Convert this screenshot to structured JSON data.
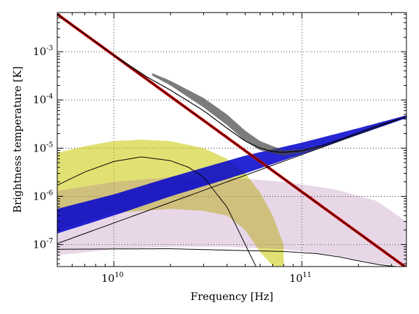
{
  "chart_data": {
    "type": "line",
    "title": "",
    "xlabel": "Frequency [Hz]",
    "ylabel": "Brightness temperature [K]",
    "x_scale": "log",
    "y_scale": "log",
    "xlim": [
      5000000000.0,
      360000000000.0
    ],
    "ylim": [
      3.5e-08,
      0.0065
    ],
    "grid": true,
    "grid_style": "dotted",
    "legend": "none",
    "x_ticks": [
      {
        "value": 10000000000.0,
        "base": "10",
        "exp": "10"
      },
      {
        "value": 100000000000.0,
        "base": "10",
        "exp": "11"
      }
    ],
    "y_ticks": [
      {
        "value": 0.001,
        "base": "10",
        "exp": "-3"
      },
      {
        "value": 0.0001,
        "base": "10",
        "exp": "-4"
      },
      {
        "value": 1e-05,
        "base": "10",
        "exp": "-5"
      },
      {
        "value": 1e-06,
        "base": "10",
        "exp": "-6"
      },
      {
        "value": 1e-07,
        "base": "10",
        "exp": "-7"
      }
    ],
    "bands": [
      {
        "id": "yellow-band",
        "color": "#c8c800",
        "opacity": 0.55,
        "x": [
          5000000000.0,
          7000000000.0,
          10000000000.0,
          14000000000.0,
          20000000000.0,
          30000000000.0,
          40000000000.0,
          50000000000.0,
          60000000000.0,
          70000000000.0,
          80000000000.0
        ],
        "lower": [
          2e-07,
          3e-07,
          4.5e-07,
          5e-07,
          5.5e-07,
          5e-07,
          4e-07,
          2e-07,
          7e-08,
          3.6e-08,
          3.6e-08
        ],
        "upper": [
          8e-06,
          1.1e-05,
          1.4e-05,
          1.5e-05,
          1.4e-05,
          1e-05,
          6e-06,
          3e-06,
          1.2e-06,
          4e-07,
          1e-07
        ]
      },
      {
        "id": "purple-band",
        "color": "#a060a0",
        "opacity": 0.25,
        "x": [
          5000000000.0,
          10000000000.0,
          20000000000.0,
          40000000000.0,
          80000000000.0,
          150000000000.0,
          250000000000.0,
          360000000000.0
        ],
        "lower": [
          6e-08,
          8e-08,
          9e-08,
          9e-08,
          8e-08,
          6e-08,
          4e-08,
          3.6e-08
        ],
        "upper": [
          1.3e-06,
          2e-06,
          2.5e-06,
          2.5e-06,
          2e-06,
          1.4e-06,
          8e-07,
          3e-07
        ]
      },
      {
        "id": "blue-band",
        "color": "#0000cc",
        "opacity": 0.85,
        "x": [
          5000000000.0,
          10000000000.0,
          20000000000.0,
          50000000000.0,
          100000000000.0,
          200000000000.0,
          360000000000.0
        ],
        "lower": [
          1.7e-07,
          4e-07,
          1e-06,
          3e-06,
          7.5e-06,
          1.9e-05,
          4.2e-05
        ],
        "upper": [
          5.5e-07,
          1.1e-06,
          2.5e-06,
          7e-06,
          1.3e-05,
          2.6e-05,
          4.8e-05
        ]
      },
      {
        "id": "gray-band",
        "color": "#444444",
        "opacity": 0.7,
        "x": [
          16000000000.0,
          20000000000.0,
          30000000000.0,
          40000000000.0,
          50000000000.0,
          60000000000.0,
          80000000000.0,
          100000000000.0,
          130000000000.0
        ],
        "lower": [
          0.00032,
          0.0002,
          7e-05,
          3e-05,
          1.4e-05,
          9e-06,
          7e-06,
          8e-06,
          1.05e-05
        ],
        "upper": [
          0.00036,
          0.00025,
          0.00011,
          5e-05,
          2.3e-05,
          1.4e-05,
          9e-06,
          9.5e-06,
          1.15e-05
        ]
      }
    ],
    "series": [
      {
        "id": "red-power-law",
        "color": "#cc0000",
        "width": 4,
        "x": [
          5000000000.0,
          360000000000.0
        ],
        "y": [
          0.006,
          3.3e-08
        ]
      },
      {
        "id": "black-total",
        "color": "#000000",
        "width": 1.2,
        "x": [
          5000000000.0,
          10000000000.0,
          15000000000.0,
          20000000000.0,
          30000000000.0,
          40000000000.0,
          50000000000.0,
          60000000000.0,
          70000000000.0,
          80000000000.0,
          100000000000.0,
          130000000000.0,
          170000000000.0,
          250000000000.0,
          360000000000.0
        ],
        "y": [
          0.006,
          0.00085,
          0.0003,
          0.00016,
          6e-05,
          2.6e-05,
          1.4e-05,
          1e-05,
          8.5e-06,
          8.2e-06,
          8.8e-06,
          1.15e-05,
          1.65e-05,
          2.9e-05,
          4.5e-05
        ]
      },
      {
        "id": "black-blue-center",
        "color": "#000000",
        "width": 1,
        "x": [
          5000000000.0,
          360000000000.0
        ],
        "y": [
          1.05e-07,
          4.5e-05
        ]
      },
      {
        "id": "black-yellow-center",
        "color": "#000000",
        "width": 1,
        "x": [
          5000000000.0,
          7000000000.0,
          10000000000.0,
          14000000000.0,
          20000000000.0,
          25000000000.0,
          30000000000.0,
          40000000000.0,
          50000000000.0,
          57000000000.0
        ],
        "y": [
          1.7e-06,
          3.2e-06,
          5.3e-06,
          6.6e-06,
          5.5e-06,
          4e-06,
          2.5e-06,
          6e-07,
          1e-07,
          3.5e-08
        ]
      },
      {
        "id": "black-purple-center",
        "color": "#000000",
        "width": 1,
        "x": [
          5000000000.0,
          20000000000.0,
          50000000000.0,
          80000000000.0,
          120000000000.0,
          160000000000.0,
          200000000000.0,
          260000000000.0,
          320000000000.0
        ],
        "y": [
          8e-08,
          8.2e-08,
          7.5e-08,
          7.2e-08,
          6.5e-08,
          5.5e-08,
          4.6e-08,
          3.8e-08,
          3.5e-08
        ]
      }
    ]
  }
}
